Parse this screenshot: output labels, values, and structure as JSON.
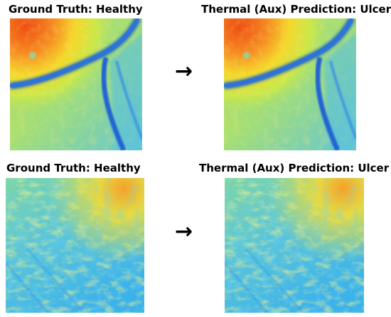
{
  "rows": [
    {
      "left_title": "Ground Truth: Healthy",
      "arrow": "→",
      "right_title": "Thermal (Aux) Prediction: Ulcer"
    },
    {
      "left_title": "Ground Truth: Healthy",
      "arrow": "→",
      "right_title": "Thermal (Aux) Prediction: Ulcer"
    }
  ],
  "colors": {
    "thermal_hot": "#f04a10",
    "thermal_warm": "#f5e628",
    "thermal_mid": "#9ee06a",
    "thermal_cool": "#33b9f0",
    "thermal_cold": "#1456c8"
  }
}
